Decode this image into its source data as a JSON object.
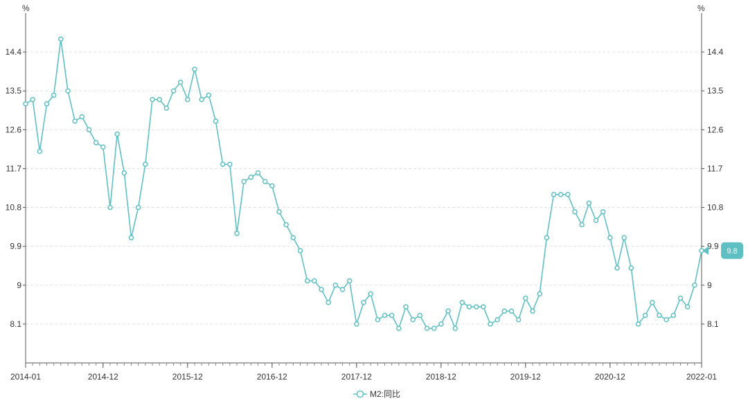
{
  "chart_data": {
    "type": "line",
    "unit_left": "%",
    "unit_right": "%",
    "y_ticks": [
      "8.1",
      "9",
      "9.9",
      "10.8",
      "11.7",
      "12.6",
      "13.5",
      "14.4"
    ],
    "ylim": [
      7.2,
      15.3
    ],
    "x_ticks": [
      "2014-01",
      "2014-12",
      "2015-12",
      "2016-12",
      "2017-12",
      "2018-12",
      "2019-12",
      "2020-12",
      "2022-01"
    ],
    "x_tick_index": [
      0,
      11,
      23,
      35,
      47,
      59,
      71,
      83,
      96
    ],
    "grid": "horizontal dashed",
    "legend_position": "bottom-center",
    "color": "#5fc0c4",
    "series": [
      {
        "name": "M2:同比",
        "values": [
          13.2,
          13.3,
          12.1,
          13.2,
          13.4,
          14.7,
          13.5,
          12.8,
          12.9,
          12.6,
          12.3,
          12.2,
          10.8,
          12.5,
          11.6,
          10.1,
          10.8,
          11.8,
          13.3,
          13.3,
          13.1,
          13.5,
          13.7,
          13.3,
          14.0,
          13.3,
          13.4,
          12.8,
          11.8,
          11.8,
          10.2,
          11.4,
          11.5,
          11.6,
          11.4,
          11.3,
          10.7,
          10.4,
          10.1,
          9.8,
          9.1,
          9.1,
          8.9,
          8.6,
          9.0,
          8.9,
          9.1,
          8.1,
          8.6,
          8.8,
          8.2,
          8.3,
          8.3,
          8.0,
          8.5,
          8.2,
          8.3,
          8.0,
          8.0,
          8.1,
          8.4,
          8.0,
          8.6,
          8.5,
          8.5,
          8.5,
          8.1,
          8.2,
          8.4,
          8.4,
          8.2,
          8.7,
          8.4,
          8.8,
          10.1,
          11.1,
          11.1,
          11.1,
          10.7,
          10.4,
          10.9,
          10.5,
          10.7,
          10.1,
          9.4,
          10.1,
          9.4,
          8.1,
          8.3,
          8.6,
          8.3,
          8.2,
          8.3,
          8.7,
          8.5,
          9.0,
          9.8
        ]
      }
    ],
    "last_value_label": "9.8"
  }
}
